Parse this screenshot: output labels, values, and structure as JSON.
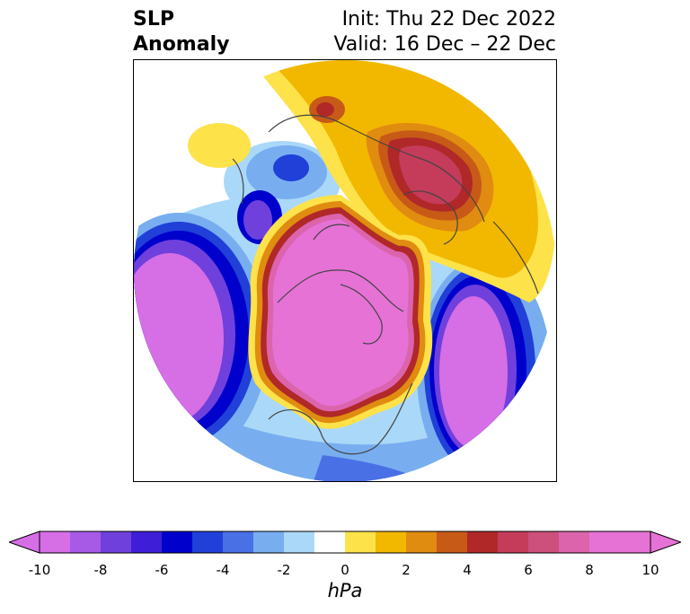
{
  "title": {
    "left_line1": "SLP",
    "left_line2": "Anomaly",
    "right_line1": "Init: Thu 22 Dec 2022",
    "right_line2": "Valid: 16 Dec – 22 Dec"
  },
  "colorbar": {
    "unit": "hPa",
    "ticks": [
      "-10",
      "-8",
      "-6",
      "-4",
      "-2",
      "0",
      "2",
      "4",
      "6",
      "8",
      "10"
    ],
    "bins": [
      -10,
      -9,
      -8,
      -7,
      -6,
      -5,
      -4,
      -3,
      -2,
      -1,
      1,
      2,
      3,
      4,
      5,
      6,
      7,
      8,
      9,
      10
    ],
    "colors": [
      "#d66ee6",
      "#a65ae6",
      "#7040dc",
      "#3e1ed6",
      "#0000cc",
      "#2040d8",
      "#4a70e6",
      "#78aef0",
      "#aad8f8",
      "#ffffff",
      "#fde24a",
      "#f2b800",
      "#e08c10",
      "#c85a18",
      "#b02828",
      "#c43c5a",
      "#cc4f7c",
      "#dc64ac",
      "#e672d6",
      "#e672d6"
    ],
    "under_color": "#d66ee6",
    "over_color": "#e672d6"
  },
  "map": {
    "projection": "polar-stereographic-north",
    "features": [
      {
        "name": "north-america-high",
        "value": 10
      },
      {
        "name": "pacific-low",
        "value": -10
      },
      {
        "name": "atlantic-low",
        "value": -10
      },
      {
        "name": "siberia-high",
        "value": 7
      },
      {
        "name": "europe-low",
        "value": -5
      }
    ]
  }
}
